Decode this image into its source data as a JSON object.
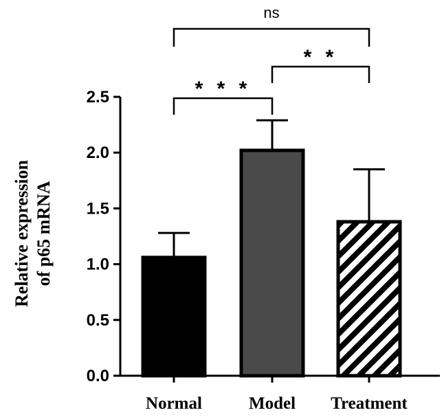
{
  "chart_data": {
    "type": "bar",
    "title": "",
    "xlabel": "",
    "ylabel_lines": [
      "Relative expression",
      "of p65 mRNA"
    ],
    "categories": [
      "Normal",
      "Model",
      "Treatment"
    ],
    "values": [
      1.06,
      2.02,
      1.38
    ],
    "errors": [
      0.22,
      0.27,
      0.47
    ],
    "fills": [
      "#000000",
      "#4a4a4a",
      "hatched"
    ],
    "ylim": [
      0,
      2.5
    ],
    "yticks": [
      "0.0",
      "0.5",
      "1.0",
      "1.5",
      "2.0",
      "2.5"
    ],
    "significance": [
      {
        "from": "Normal",
        "to": "Model",
        "label": "* * *"
      },
      {
        "from": "Model",
        "to": "Treatment",
        "label": "* *"
      },
      {
        "from": "Normal",
        "to": "Treatment",
        "label": "ns"
      }
    ]
  }
}
